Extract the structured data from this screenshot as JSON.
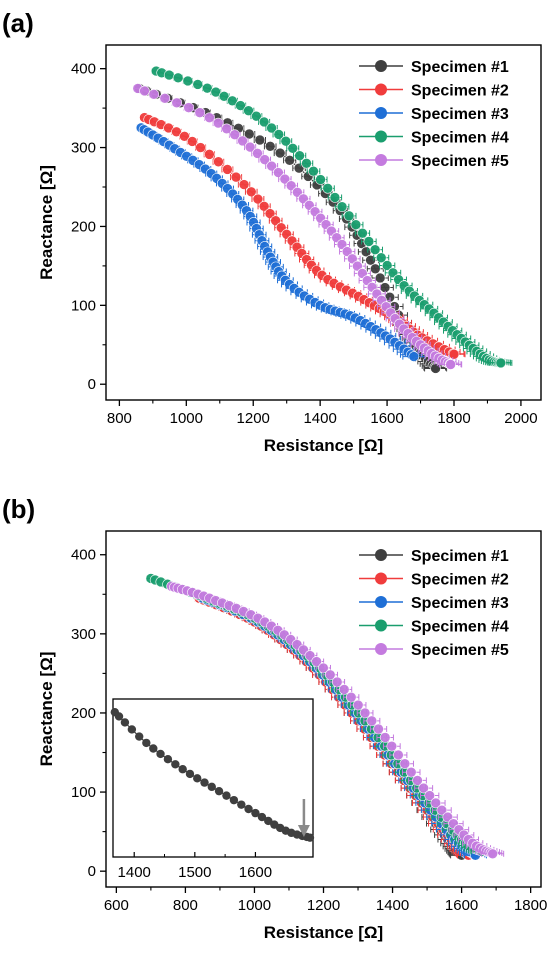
{
  "chart_data": [
    {
      "panel_label": "(a)",
      "type": "scatter",
      "xlabel": "Resistance [Ω]",
      "ylabel": "Reactance [Ω]",
      "xlim": [
        760,
        2060
      ],
      "ylim": [
        -20,
        430
      ],
      "xticks": [
        800,
        1000,
        1200,
        1400,
        1600,
        1800,
        2000
      ],
      "yticks": [
        0,
        100,
        200,
        300,
        400
      ],
      "legend_position": "top-right",
      "error_bars": "horizontal",
      "grid": false,
      "series": [
        {
          "name": "Specimen #1",
          "color": "#3f3f3f",
          "x": [
            860,
            1080,
            1290,
            1460,
            1560,
            1650,
            1700,
            1745
          ],
          "y": [
            375,
            340,
            290,
            220,
            150,
            75,
            40,
            20
          ]
        },
        {
          "name": "Specimen #2",
          "color": "#f03c3c",
          "x": [
            875,
            1010,
            1180,
            1300,
            1400,
            1520,
            1620,
            1700,
            1800
          ],
          "y": [
            338,
            310,
            250,
            190,
            140,
            110,
            85,
            60,
            38
          ]
        },
        {
          "name": "Specimen #3",
          "color": "#1f6fd6",
          "x": [
            865,
            960,
            1080,
            1180,
            1240,
            1300,
            1400,
            1500,
            1600,
            1680
          ],
          "y": [
            325,
            300,
            265,
            220,
            170,
            130,
            100,
            85,
            60,
            35
          ]
        },
        {
          "name": "Specimen #4",
          "color": "#1a9e6e",
          "x": [
            910,
            1080,
            1240,
            1380,
            1520,
            1640,
            1740,
            1830,
            1900,
            1940
          ],
          "y": [
            397,
            372,
            330,
            270,
            195,
            130,
            90,
            55,
            32,
            27
          ]
        },
        {
          "name": "Specimen #5",
          "color": "#c47bdf",
          "x": [
            855,
            1060,
            1220,
            1350,
            1460,
            1560,
            1650,
            1730,
            1790
          ],
          "y": [
            375,
            340,
            290,
            235,
            180,
            120,
            70,
            40,
            25
          ]
        }
      ]
    },
    {
      "panel_label": "(b)",
      "type": "scatter",
      "xlabel": "Resistance [Ω]",
      "ylabel": "Reactance [Ω]",
      "xlim": [
        570,
        1830
      ],
      "ylim": [
        -20,
        430
      ],
      "xticks": [
        600,
        800,
        1000,
        1200,
        1400,
        1600,
        1800
      ],
      "yticks": [
        0,
        100,
        200,
        300,
        400
      ],
      "legend_position": "top-right",
      "error_bars": "horizontal",
      "grid": false,
      "series": [
        {
          "name": "Specimen #1",
          "color": "#3f3f3f",
          "x": [
            840,
            1000,
            1150,
            1300,
            1450,
            1560,
            1600
          ],
          "y": [
            345,
            315,
            265,
            190,
            105,
            40,
            20
          ]
        },
        {
          "name": "Specimen #2",
          "color": "#f03c3c",
          "x": [
            840,
            1000,
            1150,
            1300,
            1450,
            1570,
            1620
          ],
          "y": [
            345,
            315,
            265,
            190,
            105,
            40,
            20
          ]
        },
        {
          "name": "Specimen #3",
          "color": "#1f6fd6",
          "x": [
            850,
            1010,
            1160,
            1310,
            1460,
            1580,
            1640
          ],
          "y": [
            345,
            315,
            265,
            190,
            105,
            40,
            20
          ]
        },
        {
          "name": "Specimen #4",
          "color": "#1a9e6e",
          "x": [
            700,
            860,
            1020,
            1170,
            1320,
            1470,
            1600,
            1660
          ],
          "y": [
            370,
            345,
            315,
            265,
            190,
            105,
            40,
            25
          ]
        },
        {
          "name": "Specimen #5",
          "color": "#c47bdf",
          "x": [
            760,
            870,
            1030,
            1180,
            1340,
            1490,
            1620,
            1690
          ],
          "y": [
            360,
            345,
            315,
            265,
            190,
            105,
            40,
            22
          ]
        }
      ],
      "inset": {
        "type": "line",
        "xlim": [
          1365,
          1695
        ],
        "ylim": [
          20,
          200
        ],
        "xticks": [
          1400,
          1500,
          1600
        ],
        "series": [
          {
            "name": "",
            "color": "#3f3f3f",
            "x": [
              1368,
              1420,
              1480,
              1540,
              1600,
              1650,
              1690
            ],
            "y": [
              185,
              150,
              120,
              95,
              70,
              50,
              42
            ]
          }
        ],
        "annotation": "arrow pointing at minimum near x=1680"
      }
    }
  ]
}
